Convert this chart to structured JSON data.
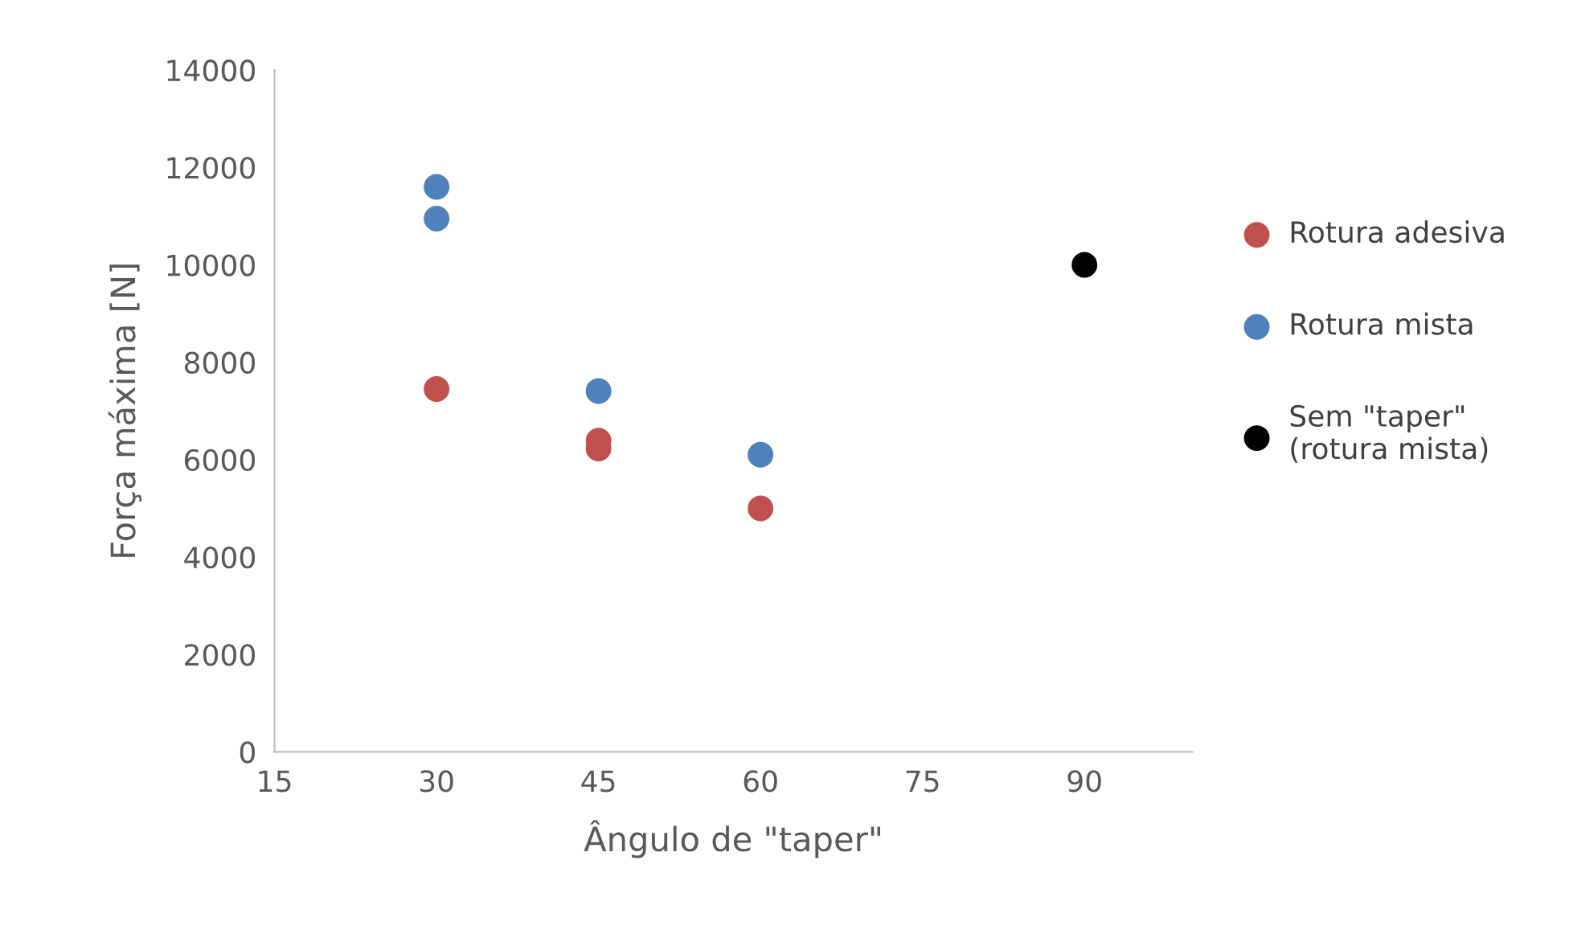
{
  "chart_data": {
    "type": "scatter",
    "xlabel": "Ângulo de \"taper\"",
    "ylabel": "Força máxima [N]",
    "xlim": [
      15,
      100
    ],
    "xticks": [
      15,
      30,
      45,
      60,
      75,
      90
    ],
    "ylim": [
      0,
      14000
    ],
    "yticks": [
      0,
      2000,
      4000,
      6000,
      8000,
      10000,
      12000,
      14000
    ],
    "grid": false,
    "legend": "right",
    "marker": "circle",
    "series": [
      {
        "name": "Rotura adesiva",
        "color": "#c0504d",
        "x": [
          30,
          45,
          45,
          60
        ],
        "values": [
          7450,
          6390,
          6230,
          5000
        ]
      },
      {
        "name": "Rotura mista",
        "color": "#4f81bd",
        "x": [
          30,
          30,
          45,
          60
        ],
        "values": [
          11600,
          10950,
          7410,
          6100
        ]
      },
      {
        "name": "Sem \"taper\"\n(rotura mista)",
        "color": "#000000",
        "x": [
          90
        ],
        "values": [
          10000
        ]
      }
    ]
  }
}
